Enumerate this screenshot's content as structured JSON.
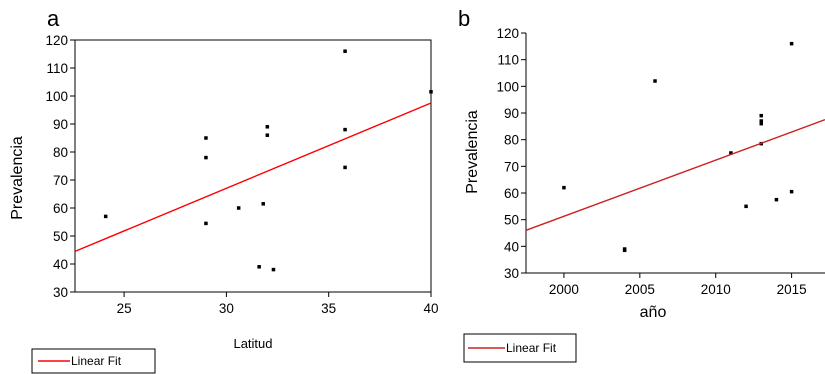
{
  "chart_data": [
    {
      "type": "scatter",
      "panel_label": "a",
      "xlabel": "Latitud",
      "ylabel": "Prevalencia",
      "xlim": [
        22.6,
        40
      ],
      "ylim": [
        30,
        120
      ],
      "xticks": [
        25,
        30,
        35,
        40
      ],
      "yticks": [
        30,
        40,
        50,
        60,
        70,
        80,
        90,
        100,
        110,
        120
      ],
      "grid": false,
      "legend": {
        "position": "bottom-left",
        "entries": [
          "Linear Fit"
        ]
      },
      "series": [
        {
          "kind": "points",
          "color": "#000000",
          "points": [
            {
              "x": 24.1,
              "y": 57
            },
            {
              "x": 29.0,
              "y": 85
            },
            {
              "x": 29.0,
              "y": 78
            },
            {
              "x": 29.0,
              "y": 54.5
            },
            {
              "x": 30.6,
              "y": 60
            },
            {
              "x": 31.6,
              "y": 39
            },
            {
              "x": 31.8,
              "y": 61.5
            },
            {
              "x": 32.0,
              "y": 89
            },
            {
              "x": 32.0,
              "y": 86
            },
            {
              "x": 32.3,
              "y": 38
            },
            {
              "x": 35.8,
              "y": 116
            },
            {
              "x": 35.8,
              "y": 88
            },
            {
              "x": 35.8,
              "y": 74.5
            },
            {
              "x": 40.0,
              "y": 101.5
            }
          ]
        },
        {
          "kind": "fit",
          "name": "Linear Fit",
          "color": "#ff0000",
          "x": [
            22.6,
            40
          ],
          "y": [
            44.5,
            97.5
          ]
        }
      ]
    },
    {
      "type": "scatter",
      "panel_label": "b",
      "xlabel": "año",
      "ylabel": "Prevalencia",
      "xlim": [
        1997.5,
        2017.2
      ],
      "ylim": [
        30,
        120
      ],
      "xticks": [
        2000,
        2005,
        2010,
        2015
      ],
      "yticks": [
        30,
        40,
        50,
        60,
        70,
        80,
        90,
        100,
        110,
        120
      ],
      "grid": false,
      "legend": {
        "position": "bottom-left",
        "entries": [
          "Linear Fit"
        ]
      },
      "series": [
        {
          "kind": "points",
          "color": "#000000",
          "points": [
            {
              "x": 2000,
              "y": 62
            },
            {
              "x": 2004,
              "y": 39
            },
            {
              "x": 2004,
              "y": 38.5
            },
            {
              "x": 2006,
              "y": 102
            },
            {
              "x": 2011,
              "y": 75
            },
            {
              "x": 2012,
              "y": 55
            },
            {
              "x": 2013,
              "y": 89
            },
            {
              "x": 2013,
              "y": 87
            },
            {
              "x": 2013,
              "y": 86
            },
            {
              "x": 2013,
              "y": 78.5
            },
            {
              "x": 2014,
              "y": 57.5
            },
            {
              "x": 2015,
              "y": 116
            },
            {
              "x": 2015,
              "y": 60.5
            }
          ]
        },
        {
          "kind": "fit",
          "name": "Linear Fit",
          "color": "#cc2222",
          "x": [
            1997.5,
            2017.2
          ],
          "y": [
            46,
            87.5
          ]
        }
      ]
    }
  ]
}
